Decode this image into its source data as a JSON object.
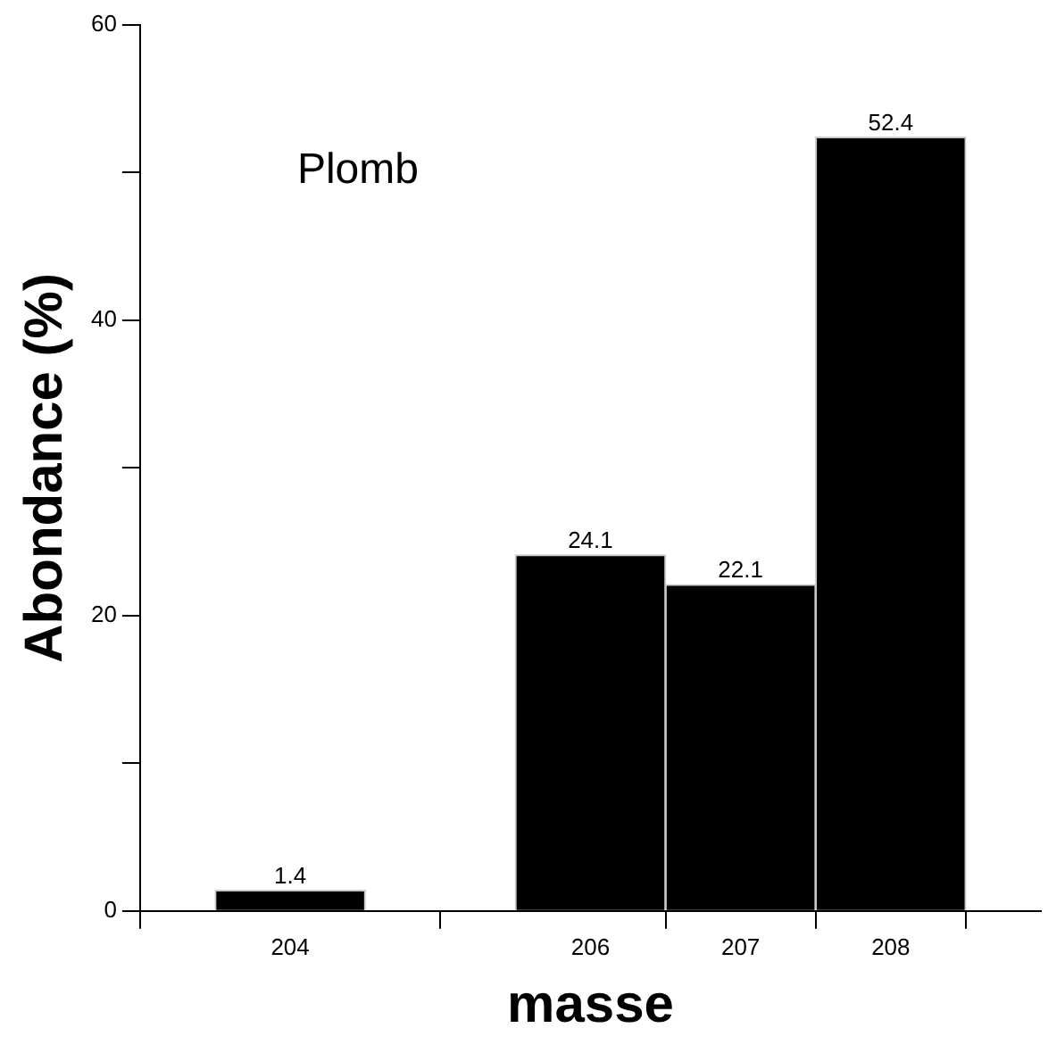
{
  "chart_data": {
    "type": "bar",
    "xlabel": "masse",
    "ylabel": "Abondance (%)",
    "x": [
      204,
      206,
      207,
      208
    ],
    "values": [
      1.4,
      24.1,
      22.1,
      52.4
    ],
    "color": "#000000",
    "xlim": [
      203,
      209
    ],
    "xticks": [
      204,
      206,
      207,
      208
    ],
    "ylim": [
      0,
      60
    ],
    "yticks": [
      0,
      {
        "value": 10,
        "label": null
      },
      20,
      {
        "value": 30,
        "label": null
      },
      40,
      {
        "value": 50,
        "label": null
      },
      60
    ],
    "data_labels": true,
    "grid": false,
    "legend": false,
    "annotations": [
      "Plomb"
    ]
  }
}
